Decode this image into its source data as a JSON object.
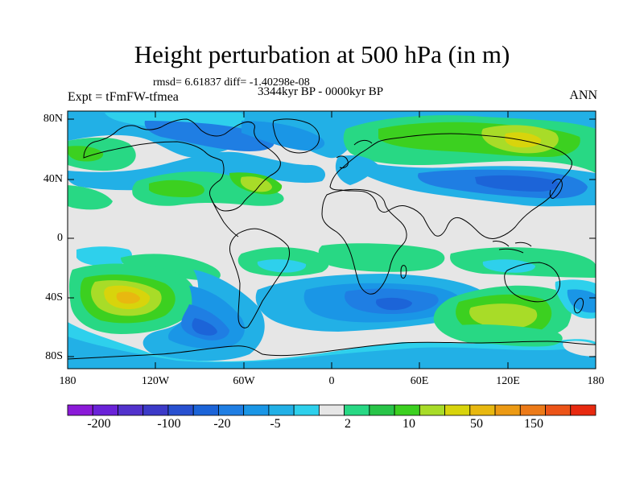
{
  "title": "Height perturbation at 500 hPa (in m)",
  "stats": "rmsd= 6.61837 diff= -1.40298e-08",
  "experiment": "Expt = tFmFW-tfmea",
  "period": "3344kyr BP - 0000kyr BP",
  "season": "ANN",
  "lat_labels": [
    "80N",
    "40N",
    "0",
    "40S",
    "80S"
  ],
  "lon_labels": [
    "180",
    "120W",
    "60W",
    "0",
    "60E",
    "120E",
    "180"
  ],
  "colorbar": {
    "colors": [
      "#8b1ad8",
      "#6a22d8",
      "#5232cc",
      "#3c3ac8",
      "#2850d0",
      "#1c64d8",
      "#1f7ee3",
      "#1a96e6",
      "#22b0e6",
      "#2ed0ec",
      "#e6e6e6",
      "#28d884",
      "#28c448",
      "#3cd020",
      "#a8dc28",
      "#d8d40c",
      "#e8b810",
      "#ec9a14",
      "#ec7a18",
      "#ec5418",
      "#e82a10"
    ],
    "labels": [
      "-200",
      "-100",
      "-20",
      "-5",
      "2",
      "10",
      "50",
      "150"
    ]
  }
}
